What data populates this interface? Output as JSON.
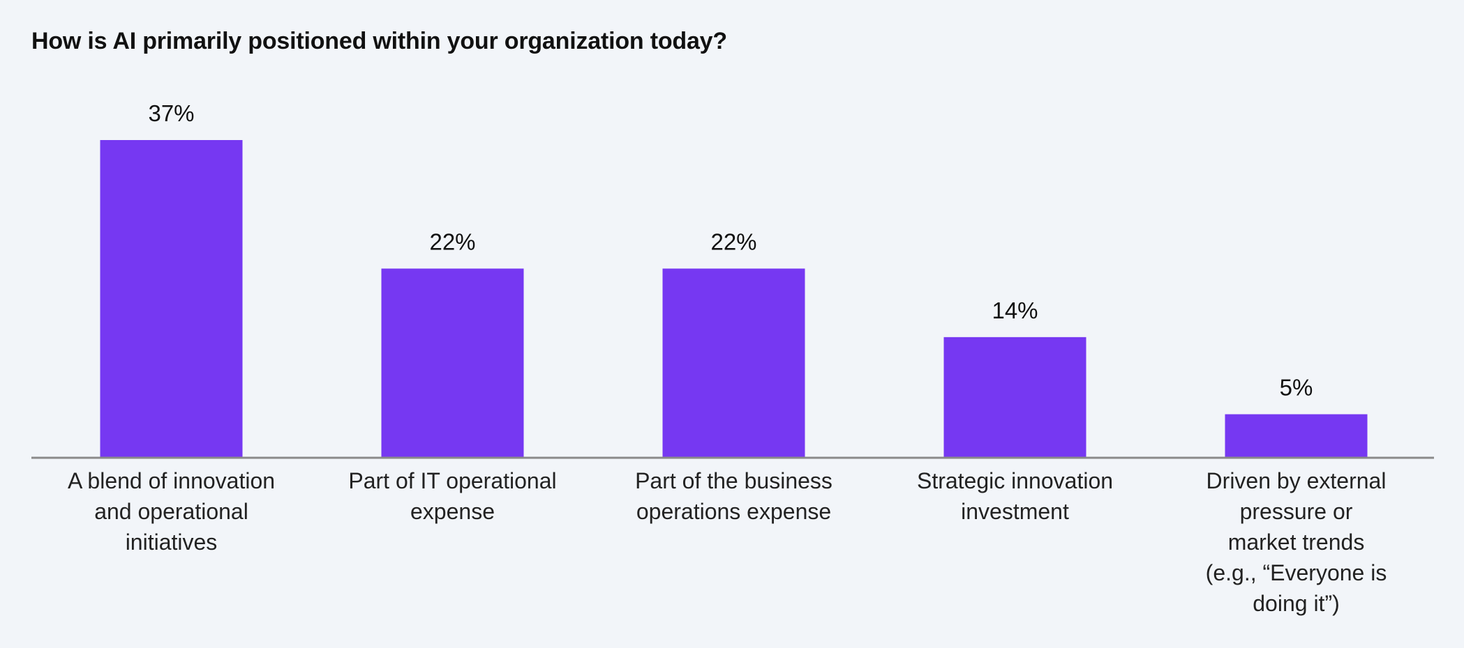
{
  "chart_data": {
    "type": "bar",
    "title": "How is AI primarily positioned within your organization today?",
    "xlabel": "",
    "ylabel": "",
    "categories": [
      "A blend of innovation and operational initiatives",
      "Part of IT operational expense",
      "Part of the business operations expense",
      "Strategic innovation investment",
      "Driven by external pressure or market trends (e.g., “Everyone is doing it”)"
    ],
    "category_lines": [
      [
        "A blend of innovation",
        "and operational",
        "initiatives"
      ],
      [
        "Part of IT operational",
        "expense"
      ],
      [
        "Part of the business",
        "operations expense"
      ],
      [
        "Strategic innovation",
        "investment"
      ],
      [
        "Driven by external",
        "pressure or",
        "market trends",
        "(e.g., “Everyone is",
        "doing it”)"
      ]
    ],
    "values": [
      37,
      22,
      22,
      14,
      5
    ],
    "data_labels": [
      "37%",
      "22%",
      "22%",
      "14%",
      "5%"
    ],
    "ylim": [
      0,
      37
    ],
    "grid": false,
    "legend": "none",
    "colors": {
      "bar": "#7638f2",
      "axis": "#8a8a8a",
      "background": "#f2f5f9",
      "text": "#111111"
    }
  }
}
